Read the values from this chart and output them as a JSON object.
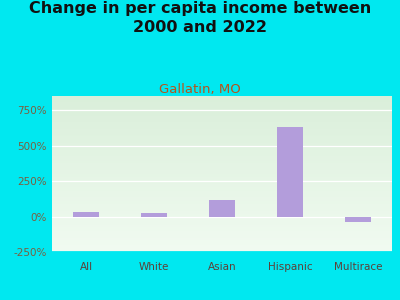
{
  "title": "Change in per capita income between\n2000 and 2022",
  "subtitle": "Gallatin, MO",
  "categories": [
    "All",
    "White",
    "Asian",
    "Hispanic",
    "Multirace"
  ],
  "values": [
    30,
    28,
    120,
    630,
    -40
  ],
  "bar_color": "#b39ddb",
  "title_fontsize": 11.5,
  "subtitle_fontsize": 9.5,
  "subtitle_color": "#b5541c",
  "title_color": "#111111",
  "background_color": "#00e8f0",
  "ylim": [
    -250,
    850
  ],
  "yticks": [
    -250,
    0,
    250,
    500,
    750
  ],
  "ytick_labels": [
    "-250%",
    "0%",
    "250%",
    "500%",
    "750%"
  ],
  "tick_color": "#7a6040",
  "axis_label_color": "#5d4037",
  "bar_width": 0.38,
  "grid_color": "#d0d8c0",
  "plot_bg_color1": "#deeedd",
  "plot_bg_color2": "#f2faf2"
}
